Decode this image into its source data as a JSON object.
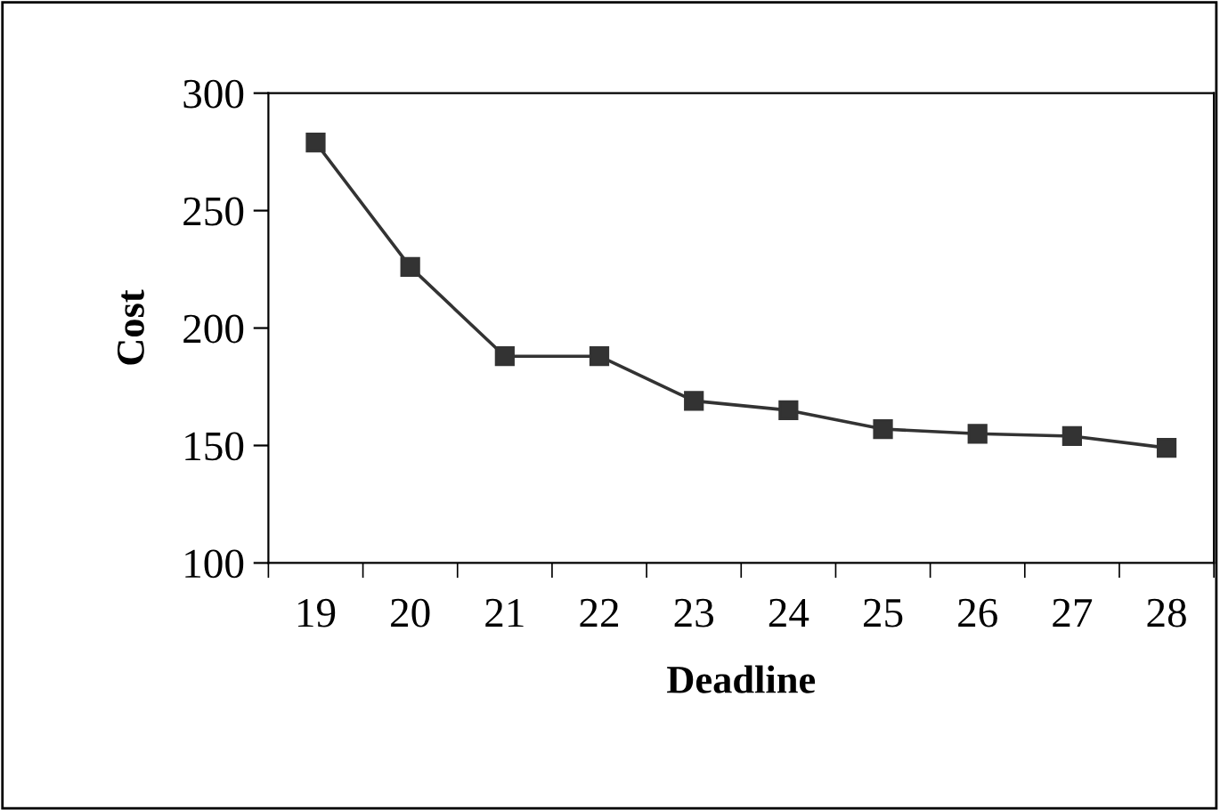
{
  "chart_data": {
    "type": "line",
    "xlabel": "Deadline",
    "ylabel": "Cost",
    "categories": [
      "19",
      "20",
      "21",
      "22",
      "23",
      "24",
      "25",
      "26",
      "27",
      "28"
    ],
    "series": [
      {
        "color": "#333333",
        "values": [
          279,
          226,
          188,
          188,
          169,
          165,
          157,
          155,
          154,
          149
        ]
      }
    ],
    "ylim": [
      100,
      300
    ],
    "yticks": [
      100,
      150,
      200,
      250,
      300
    ],
    "grid": false,
    "legend": false,
    "marker": "square",
    "line_style": "solid"
  }
}
